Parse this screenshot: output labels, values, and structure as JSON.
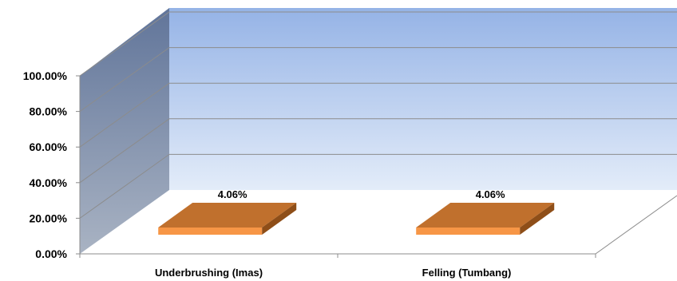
{
  "chart_data": {
    "type": "bar",
    "style": "3d",
    "categories": [
      "Underbrushing (Imas)",
      "Felling (Tumbang)"
    ],
    "values": [
      4.06,
      4.06
    ],
    "data_labels": [
      "4.06%",
      "4.06%"
    ],
    "ylim": [
      0,
      100
    ],
    "y_ticks": [
      0,
      20,
      40,
      60,
      80,
      100
    ],
    "y_tick_labels": [
      "0.00%",
      "20.00%",
      "40.00%",
      "60.00%",
      "80.00%",
      "100.00%"
    ],
    "title": "",
    "xlabel": "",
    "ylabel": "",
    "grid": true,
    "legend": "none",
    "colors": {
      "bar_front": "#f79646",
      "bar_top": "#c0702d",
      "bar_side": "#8e4e18",
      "back_wall_top": "#95b3e6",
      "back_wall_bottom": "#e3ecf9",
      "side_wall_top": "#61759a",
      "side_wall_bottom": "#a9b3c3",
      "grid": "#8c8c8c",
      "axis": "#8c8c8c"
    }
  }
}
